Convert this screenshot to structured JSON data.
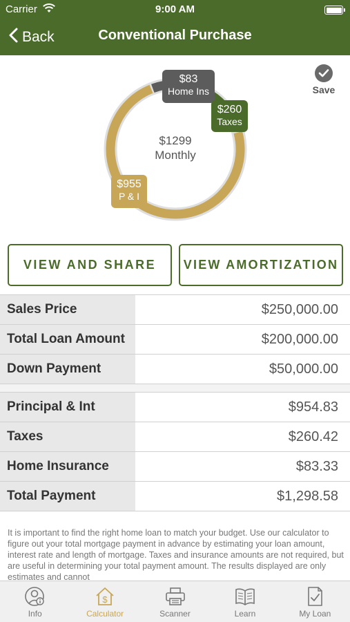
{
  "status_bar": {
    "carrier": "Carrier",
    "time": "9:00 AM"
  },
  "nav": {
    "back_label": "Back",
    "title": "Conventional Purchase"
  },
  "chart": {
    "center_amount": "$1299",
    "center_label": "Monthly",
    "segments": [
      {
        "name": "P & I",
        "amount": "$955",
        "value": 954.83,
        "color": "#c7a657"
      },
      {
        "name": "Taxes",
        "amount": "$260",
        "value": 260.42,
        "color": "#4a6b2a"
      },
      {
        "name": "Home Ins",
        "amount": "$83",
        "value": 83.33,
        "color": "#5c5c5c"
      }
    ]
  },
  "save": {
    "label": "Save"
  },
  "buttons": {
    "view_share": "VIEW AND SHARE",
    "view_amortization": "VIEW AMORTIZATION"
  },
  "loan_table": [
    {
      "label": "Sales Price",
      "value": "$250,000.00"
    },
    {
      "label": "Total Loan Amount",
      "value": "$200,000.00"
    },
    {
      "label": "Down Payment",
      "value": "$50,000.00"
    }
  ],
  "payment_table": [
    {
      "label": "Principal & Int",
      "value": "$954.83"
    },
    {
      "label": "Taxes",
      "value": "$260.42"
    },
    {
      "label": "Home Insurance",
      "value": "$83.33"
    },
    {
      "label": "Total Payment",
      "value": "$1,298.58"
    }
  ],
  "disclaimer": "It is important to find the right home loan to match your budget. Use our calculator to figure out your total mortgage payment in advance by estimating your loan amount, interest rate and length of mortgage. Taxes and insurance amounts are not required, but are useful in determining your total payment amount.  The results displayed are only estimates and cannot",
  "tabs": [
    {
      "label": "Info",
      "icon": "info-person-icon",
      "active": false
    },
    {
      "label": "Calculator",
      "icon": "house-dollar-icon",
      "active": true
    },
    {
      "label": "Scanner",
      "icon": "scanner-icon",
      "active": false
    },
    {
      "label": "Learn",
      "icon": "open-book-icon",
      "active": false
    },
    {
      "label": "My Loan",
      "icon": "document-check-icon",
      "active": false
    }
  ],
  "colors": {
    "brand_green": "#4a6b2a",
    "gold": "#c7a657",
    "gray": "#5c5c5c"
  }
}
